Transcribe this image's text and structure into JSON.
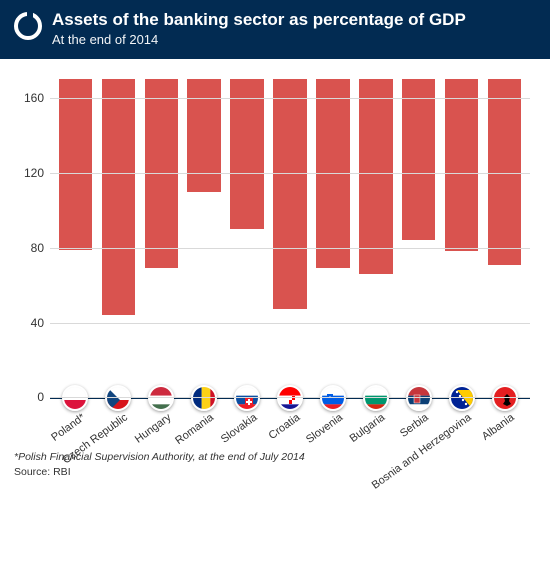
{
  "header": {
    "title": "Assets of the banking sector as percentage of GDP",
    "subtitle": "At the end of 2014",
    "bg_color": "#022b52",
    "text_color": "#ffffff"
  },
  "chart": {
    "type": "bar",
    "ylim": [
      0,
      170
    ],
    "yticks": [
      0,
      40,
      80,
      120,
      160
    ],
    "grid_color": "#d9d9d9",
    "axis_color": "#022b52",
    "bar_color": "#d9534f",
    "bar_width_pct": 78,
    "label_fontsize": 12,
    "xlabel_fontsize": 11,
    "xlabel_rotation_deg": -36,
    "background_color": "#ffffff",
    "categories": [
      {
        "label": "Poland*",
        "value": 91,
        "flag": "pl"
      },
      {
        "label": "Czech Republic",
        "value": 126,
        "flag": "cz"
      },
      {
        "label": "Hungary",
        "value": 101,
        "flag": "hu"
      },
      {
        "label": "Romania",
        "value": 60,
        "flag": "ro"
      },
      {
        "label": "Slovakia",
        "value": 80,
        "flag": "sk"
      },
      {
        "label": "Croatia",
        "value": 123,
        "flag": "hr"
      },
      {
        "label": "Slovenia",
        "value": 101,
        "flag": "si"
      },
      {
        "label": "Bulgaria",
        "value": 104,
        "flag": "bg"
      },
      {
        "label": "Serbia",
        "value": 86,
        "flag": "rs"
      },
      {
        "label": "Bosnia and Herzegovina",
        "value": 92,
        "flag": "ba"
      },
      {
        "label": "Albania",
        "value": 99,
        "flag": "al"
      }
    ]
  },
  "flags": {
    "pl": {
      "top": "#ffffff",
      "bottom": "#dc143c"
    },
    "cz": {
      "top": "#ffffff",
      "bottom": "#d7141a",
      "triangle": "#11457e"
    },
    "hu": {
      "top": "#cd2a3e",
      "mid": "#ffffff",
      "bottom": "#436f4d"
    },
    "ro": {
      "left": "#002b7f",
      "mid": "#fcd116",
      "right": "#ce1126"
    },
    "sk": {
      "top": "#ffffff",
      "mid": "#0b4ea2",
      "bottom": "#ee1c25"
    },
    "hr": {
      "top": "#ff0000",
      "mid": "#ffffff",
      "bottom": "#171796"
    },
    "si": {
      "top": "#ffffff",
      "mid": "#005ce5",
      "bottom": "#ed1c24"
    },
    "bg": {
      "top": "#ffffff",
      "mid": "#00966e",
      "bottom": "#d62612"
    },
    "rs": {
      "top": "#c6363c",
      "mid": "#0c4076",
      "bottom": "#ffffff"
    },
    "ba": {
      "bg": "#002395",
      "tri": "#fecb00"
    },
    "al": {
      "bg": "#e41e20"
    }
  },
  "footer": {
    "footnote": "*Polish Financial Supervision Authority, at the end of July 2014",
    "source": "Source: RBI"
  }
}
